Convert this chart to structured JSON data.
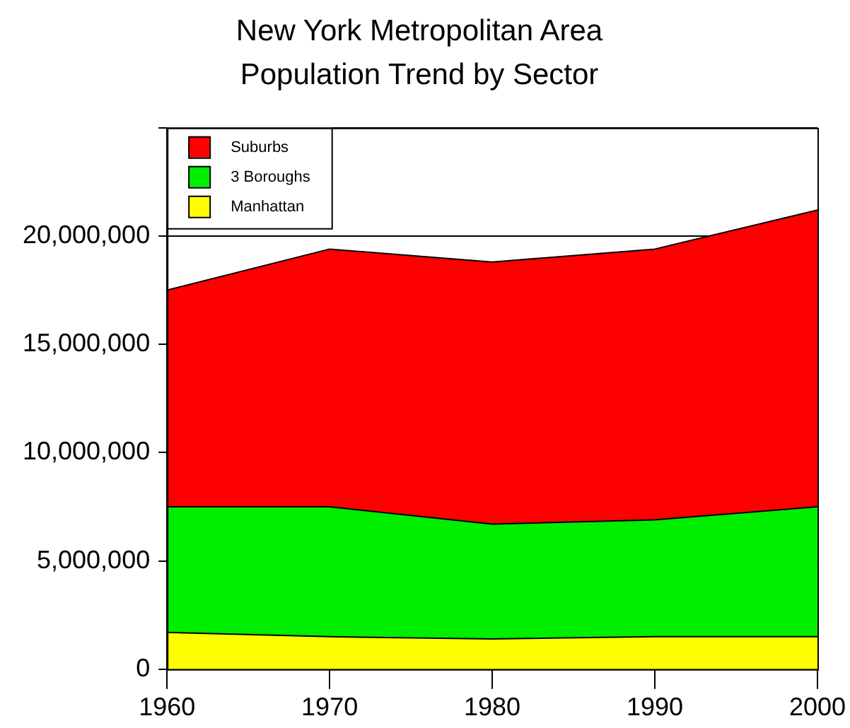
{
  "chart_data": {
    "type": "area",
    "title": "New York Metropolitan Area",
    "subtitle": "Population Trend by Sector",
    "stacked": true,
    "x": [
      1960,
      1970,
      1980,
      1990,
      2000
    ],
    "series": [
      {
        "name": "Manhattan",
        "color": "#ffff00",
        "values": [
          1700000,
          1500000,
          1400000,
          1500000,
          1500000
        ]
      },
      {
        "name": "3 Boroughs",
        "color": "#00ee00",
        "values": [
          5800000,
          6000000,
          5300000,
          5400000,
          6000000
        ]
      },
      {
        "name": "Suburbs",
        "color": "#ff0000",
        "values": [
          10000000,
          11900000,
          12100000,
          12500000,
          13700000
        ]
      }
    ],
    "xlim": [
      1960,
      2000
    ],
    "xticks": [
      1960,
      1970,
      1980,
      1990,
      2000
    ],
    "ylim": [
      0,
      25000000
    ],
    "yticks": [
      0,
      {
        "value": 5000000,
        "label": "5,000,000"
      },
      {
        "value": 10000000,
        "label": "10,000,000"
      },
      {
        "value": 15000000,
        "label": "15,000,000"
      },
      {
        "value": 20000000,
        "label": "20,000,000"
      },
      {
        "value": 25000000,
        "label": null
      }
    ],
    "grid": "y",
    "legend": "top left"
  }
}
